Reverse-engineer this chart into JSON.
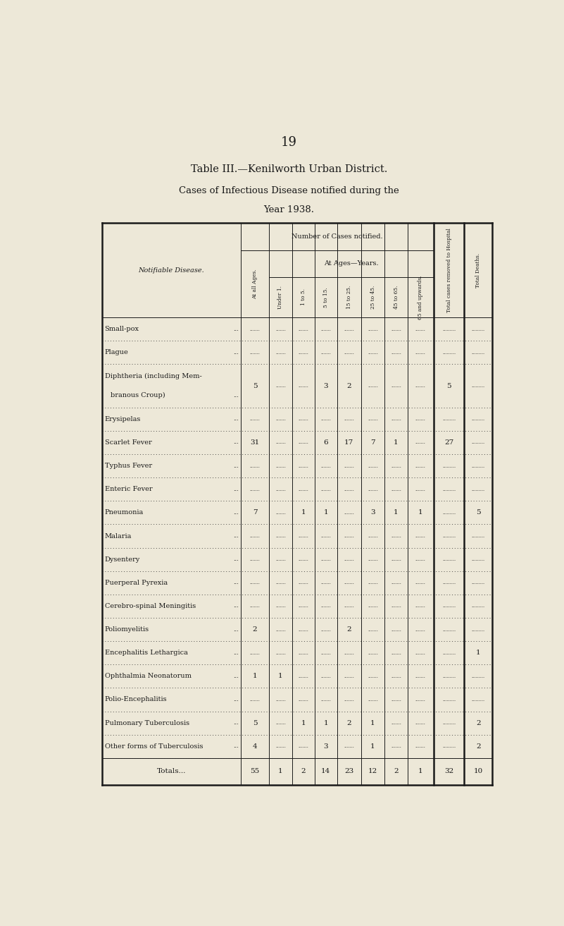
{
  "page_number": "19",
  "title1": "Table III.—Kenilworth Urban District.",
  "title2": "Cases of Infectious Disease notified during the",
  "title3": "Year 1938.",
  "bg_color": "#ede8d8",
  "text_color": "#1a1a1a",
  "col_headers": [
    "At all Ages.",
    "Under 1.",
    "1 to 5.",
    "5 to 15.",
    "15 to 25.",
    "25 to 45.",
    "45 to 65.",
    "65 and upwards.",
    "Total cases removed to Hospital",
    "Total Deaths."
  ],
  "diseases": [
    "Small-pox",
    "Plague",
    "Diphtheria (including Mem-\nbranous Croup)",
    "Erysipelas",
    "Scarlet Fever",
    "Typhus Fever",
    "Enteric Fever",
    "Pneumonia",
    "Malaria",
    "Dysentery",
    "Puerperal Pyrexia",
    "Cerebro-spinal Meningitis",
    "Poliomyelitis",
    "Encephalitis Lethargica",
    "Ophthalmia Neonatorum",
    "Polio-Encephalitis",
    "Pulmonary Tuberculosis",
    "Other forms of Tuberculosis",
    "Totals..."
  ],
  "data": [
    [
      "",
      "",
      "",
      "",
      "",
      "",
      "",
      "",
      "",
      ""
    ],
    [
      "",
      "",
      "",
      "",
      "",
      "",
      "",
      "",
      "",
      ""
    ],
    [
      "5",
      "",
      "",
      "3",
      "2",
      "",
      "",
      "",
      "5",
      ""
    ],
    [
      "",
      "",
      "",
      "",
      "",
      "",
      "",
      "",
      "",
      ""
    ],
    [
      "31",
      "",
      "",
      "6",
      "17",
      "7",
      "1",
      "",
      "27",
      ""
    ],
    [
      "",
      "",
      "",
      "",
      "",
      "",
      "",
      "",
      "",
      ""
    ],
    [
      "",
      "",
      "",
      "",
      "",
      "",
      "",
      "",
      "",
      ""
    ],
    [
      "7",
      "",
      "1",
      "1",
      "",
      "3",
      "1",
      "1",
      "",
      "5"
    ],
    [
      "",
      "",
      "",
      "",
      "",
      "",
      "",
      "",
      "",
      ""
    ],
    [
      "",
      "",
      "",
      "",
      "",
      "",
      "",
      "",
      "",
      ""
    ],
    [
      "",
      "",
      "",
      "",
      "",
      "",
      "",
      "",
      "",
      ""
    ],
    [
      "",
      "",
      "",
      "",
      "",
      "",
      "",
      "",
      "",
      ""
    ],
    [
      "2",
      "",
      "",
      "",
      "2",
      "",
      "",
      "",
      "",
      ""
    ],
    [
      "",
      "",
      "",
      "",
      "",
      "",
      "",
      "",
      "",
      "1"
    ],
    [
      "1",
      "1",
      "",
      "",
      "",
      "",
      "",
      "",
      "",
      ""
    ],
    [
      "",
      "",
      "",
      "",
      "",
      "",
      "",
      "",
      "",
      ""
    ],
    [
      "5",
      "",
      "1",
      "1",
      "2",
      "1",
      "",
      "",
      "",
      "2"
    ],
    [
      "4",
      "",
      "",
      "3",
      "",
      "1",
      "",
      "",
      "",
      "2"
    ],
    [
      "55",
      "1",
      "2",
      "14",
      "23",
      "12",
      "2",
      "1",
      "32",
      "10"
    ]
  ]
}
